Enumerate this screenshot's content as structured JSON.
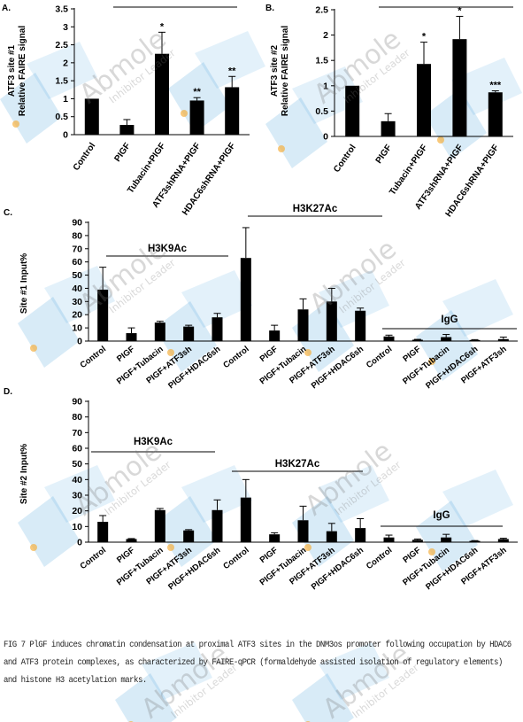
{
  "chart_data": [
    {
      "type": "bar",
      "panel": "A.",
      "ylabel": "ATF3 site #1\nRelative FAIRE signal",
      "ylim": [
        0,
        3.5
      ],
      "yticks": [
        0,
        0.5,
        1,
        1.5,
        2,
        2.5,
        3,
        3.5
      ],
      "categories": [
        "Control",
        "PIGF",
        "Tubacin+PIGF",
        "ATF3shRNA+PIGF",
        "HDAC6shRNA+PIGF"
      ],
      "values": [
        1.0,
        0.27,
        2.25,
        0.95,
        1.32
      ],
      "errors": [
        0.0,
        0.15,
        0.6,
        0.08,
        0.3
      ],
      "annotations": [
        "",
        "",
        "*",
        "**",
        "**"
      ]
    },
    {
      "type": "bar",
      "panel": "B.",
      "ylabel": "ATF3 site #2\nRelative FAIRE signal",
      "ylim": [
        0,
        2.5
      ],
      "yticks": [
        0,
        0.5,
        1,
        1.5,
        2,
        2.5
      ],
      "categories": [
        "Control",
        "PIGF",
        "Tubacin+PIGF",
        "ATF3shRNA+PIGF",
        "HDAC6shRNA+PIGF"
      ],
      "values": [
        1.0,
        0.3,
        1.43,
        1.92,
        0.87
      ],
      "errors": [
        0.0,
        0.15,
        0.43,
        0.45,
        0.03
      ],
      "annotations": [
        "",
        "",
        "*",
        "*",
        "***"
      ]
    },
    {
      "type": "bar",
      "panel": "C.",
      "ylabel": "Site #1 Input%",
      "ylim": [
        0,
        90
      ],
      "yticks": [
        0,
        10,
        20,
        30,
        40,
        50,
        60,
        70,
        80,
        90
      ],
      "categories": [
        "Control",
        "PIGF",
        "PIGF+Tubacin",
        "PIGF+ATF3sh",
        "PIGF+HDAC6sh",
        "Control",
        "PIGF",
        "PIGF+Tubacin",
        "PIGF+ATF3sh",
        "PIGF+HDAC6sh",
        "Control",
        "PIGF",
        "PIGF+Tubacin",
        "PIGF+HDAC6sh",
        "PIGF+ATF3sh"
      ],
      "values": [
        39,
        6,
        14,
        11,
        18,
        63,
        8,
        24,
        30,
        23,
        3.5,
        1,
        3,
        0.8,
        1.5
      ],
      "errors": [
        17,
        4,
        1,
        1,
        3,
        23,
        4,
        8,
        10,
        2,
        1,
        0.3,
        2,
        0.3,
        1.5
      ],
      "groups": [
        {
          "label": "H3K9Ac",
          "start": 0,
          "end": 4
        },
        {
          "label": "H3K27Ac",
          "start": 5,
          "end": 9
        },
        {
          "label": "IgG",
          "start": 10,
          "end": 14
        }
      ]
    },
    {
      "type": "bar",
      "panel": "D.",
      "ylabel": "Site #2 Input%",
      "ylim": [
        0,
        90
      ],
      "yticks": [
        0,
        10,
        20,
        30,
        40,
        50,
        60,
        70,
        80,
        90
      ],
      "categories": [
        "Control",
        "PIGF",
        "PIGF+Tubacin",
        "PIGF+ATF3sh",
        "PIGF+HDAC6sh",
        "Control",
        "PIGF",
        "PIGF+Tubacin",
        "PIGF+ATF3sh",
        "PIGF+HDAC6sh",
        "Control",
        "PIGF",
        "PIGF+Tubacin",
        "PIGF+HDAC6sh",
        "PIGF+ATF3sh"
      ],
      "values": [
        13,
        2,
        20.5,
        7.5,
        20.5,
        28.5,
        5,
        14,
        7,
        9,
        3,
        1.5,
        3,
        0.8,
        2
      ],
      "errors": [
        4,
        0.3,
        1,
        0.5,
        6.5,
        11.5,
        1,
        9,
        5,
        6,
        1.5,
        0.5,
        2,
        0.2,
        0.5
      ],
      "groups": [
        {
          "label": "H3K9Ac",
          "start": 0,
          "end": 4
        },
        {
          "label": "H3K27Ac",
          "start": 5,
          "end": 9
        },
        {
          "label": "IgG",
          "start": 10,
          "end": 14
        }
      ]
    }
  ],
  "caption": "FIG 7 PlGF induces chromatin condensation at proximal ATF3 sites in the DNM3os promoter following occupation by HDAC6 and ATF3 protein complexes, as characterized by FAIRE-qPCR (formaldehyde assisted isolation of regulatory elements) and histone H3 acetylation marks.",
  "watermark": {
    "brand": "Abmole",
    "tagline": "Inhibitor Leader"
  },
  "colors": {
    "bar": "#000000",
    "watermark_blue": "#3a9ad9",
    "watermark_dot": "#f5b041"
  }
}
